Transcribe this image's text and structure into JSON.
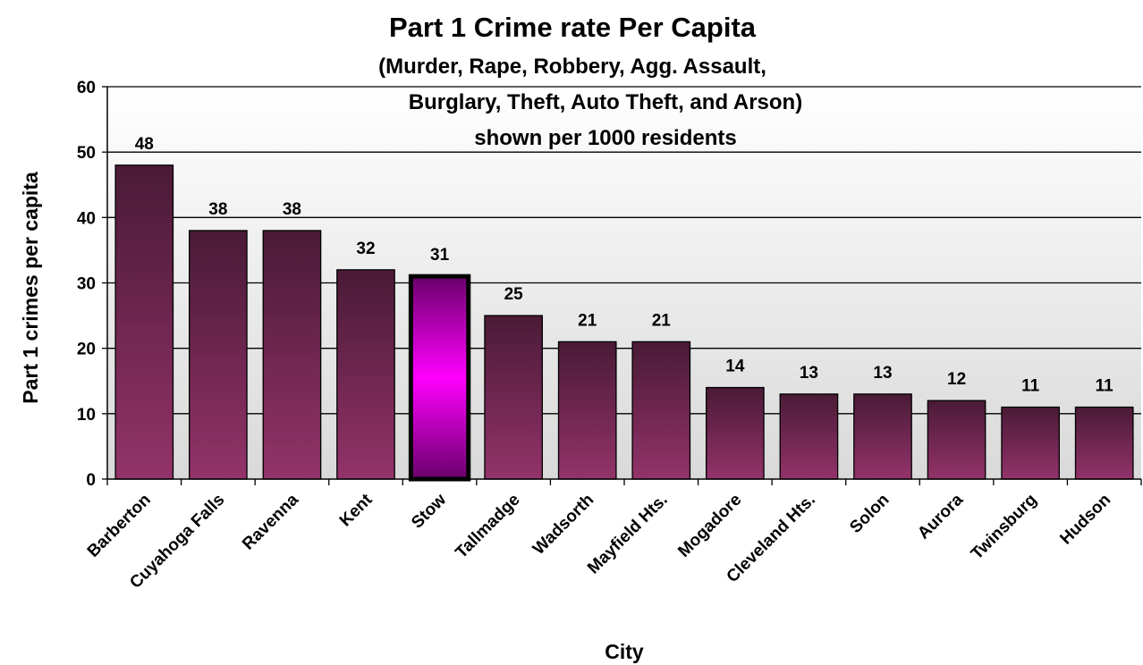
{
  "chart_data": {
    "type": "bar",
    "title": "Part 1 Crime rate Per Capita",
    "subtitle_lines": [
      "(Murder, Rape, Robbery, Agg. Assault,",
      "Burglary, Theft, Auto Theft, and Arson)",
      "shown per 1000 residents"
    ],
    "xlabel": "City",
    "ylabel": "Part 1 crimes per capita",
    "categories": [
      "Barberton",
      "Cuyahoga Falls",
      "Ravenna",
      "Kent",
      "Stow",
      "Tallmadge",
      "Wadsorth",
      "Mayfield Hts.",
      "Mogadore",
      "Cleveland Hts.",
      "Solon",
      "Aurora",
      "Twinsburg",
      "Hudson"
    ],
    "values": [
      48,
      38,
      38,
      32,
      31,
      25,
      21,
      21,
      14,
      13,
      13,
      12,
      11,
      11
    ],
    "data_labels": [
      "48",
      "38",
      "38",
      "32",
      "31",
      "25",
      "21",
      "21",
      "14",
      "13",
      "13",
      "12",
      "11",
      "11"
    ],
    "ylim": [
      0,
      60
    ],
    "yticks": [
      "0",
      "10",
      "20",
      "30",
      "40",
      "50",
      "60"
    ],
    "grid": true,
    "legend": "none",
    "highlight_category": "Stow",
    "colors": {
      "bar_dark": "#4a1a36",
      "bar_light": "#93336a",
      "highlight_mid": "#ff00ff",
      "highlight_edge": "#6a006a",
      "plot_bg_top": "#ffffff",
      "plot_bg_bottom": "#d9d9d9"
    }
  }
}
